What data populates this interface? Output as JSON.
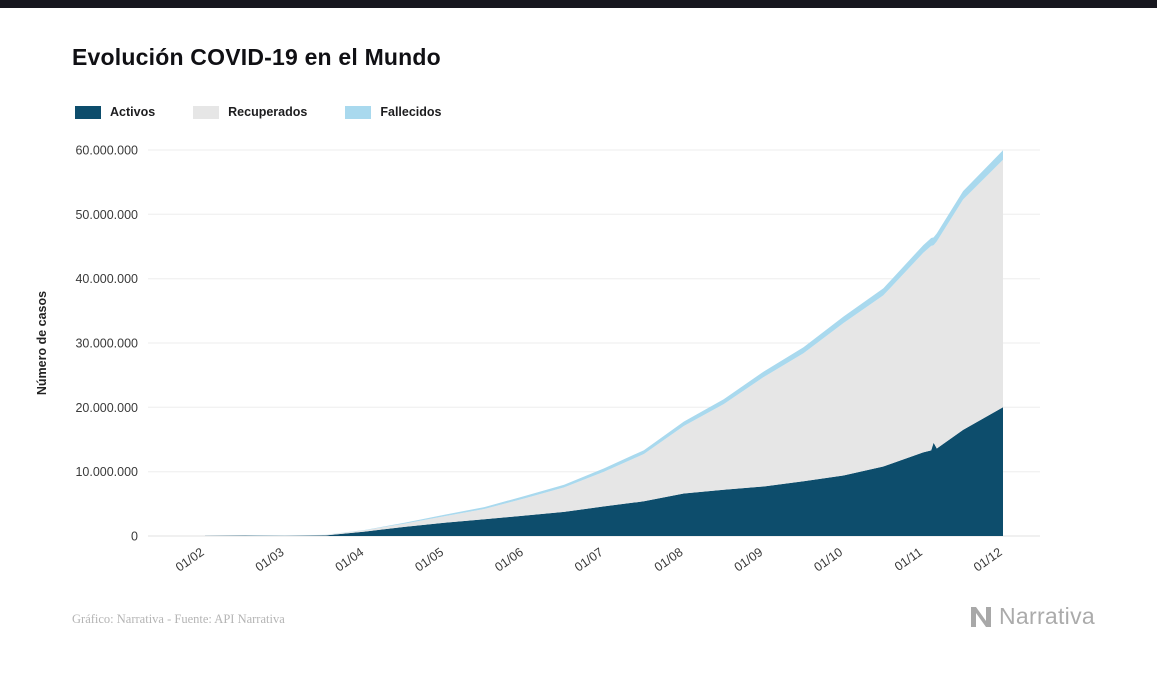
{
  "page": {
    "background": "#ffffff",
    "top_strip_color": "#17171f"
  },
  "header": {
    "title": "Evolución COVID-19 en el Mundo"
  },
  "footer": {
    "credit": "Gráfico: Narrativa - Fuente: API Narrativa",
    "brand": "Narrativa"
  },
  "chart_data": {
    "type": "area",
    "stacked": true,
    "title": "Evolución COVID-19 en el Mundo",
    "xlabel": "",
    "ylabel": "Número de casos",
    "ylim": [
      0,
      60000000
    ],
    "grid": "horizontal",
    "legend_position": "top-left",
    "yticks": [
      0,
      10000000,
      20000000,
      30000000,
      40000000,
      50000000,
      60000000
    ],
    "ytick_labels": [
      "0",
      "10.000.000",
      "20.000.000",
      "30.000.000",
      "40.000.000",
      "50.000.000",
      "60.000.000"
    ],
    "xtick_labels": [
      "01/02",
      "01/03",
      "01/04",
      "01/05",
      "01/06",
      "01/07",
      "01/08",
      "01/09",
      "01/10",
      "01/11",
      "01/12"
    ],
    "x_months": [
      0,
      0.5,
      1,
      1.5,
      2,
      2.5,
      3,
      3.5,
      4,
      4.5,
      5,
      5.5,
      6,
      6.5,
      7,
      7.5,
      8,
      8.5,
      9,
      9.1,
      9.13,
      9.17,
      9.5,
      10
    ],
    "series": [
      {
        "name": "Activos",
        "color": "#0d4d6c",
        "values": [
          10000,
          58000,
          42000,
          85000,
          690000,
          1420000,
          2060000,
          2600000,
          3170000,
          3750000,
          4600000,
          5400000,
          6600000,
          7200000,
          7700000,
          8500000,
          9400000,
          10800000,
          13000000,
          13300000,
          14500000,
          13600000,
          16500000,
          20000000
        ]
      },
      {
        "name": "Recuperados",
        "color": "#e6e6e6",
        "values": [
          300,
          9000,
          42000,
          76000,
          190000,
          510000,
          1010000,
          1600000,
          2660000,
          3800000,
          5400000,
          7350000,
          10500000,
          13300000,
          17000000,
          19900000,
          23700000,
          26600000,
          31000000,
          31800000,
          30700000,
          32200000,
          35800000,
          38500000
        ]
      },
      {
        "name": "Fallecidos",
        "color": "#a9d9ee",
        "values": [
          300,
          1700,
          3000,
          6500,
          47000,
          134000,
          235000,
          300000,
          372000,
          430000,
          510000,
          580000,
          680000,
          770000,
          850000,
          930000,
          1010000,
          1090000,
          1200000,
          1220000,
          1220000,
          1230000,
          1310000,
          1470000
        ]
      }
    ]
  }
}
